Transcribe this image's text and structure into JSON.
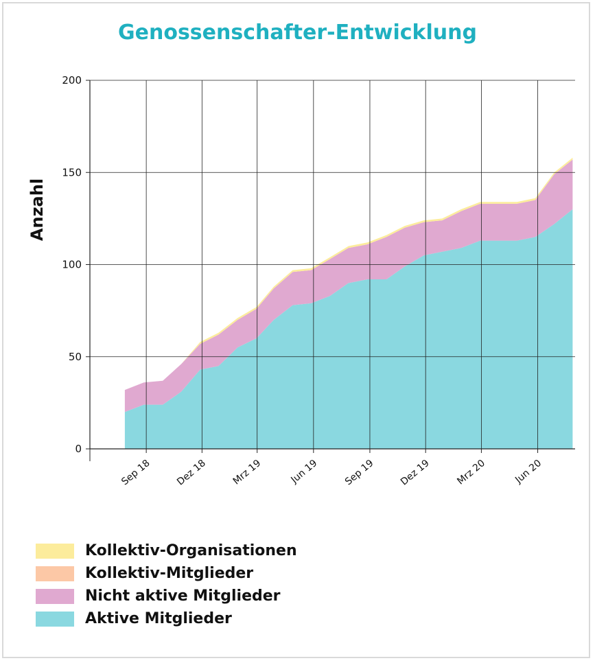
{
  "chart_data": {
    "type": "area",
    "stacked": true,
    "title": "Genossenschafter-Entwicklung",
    "ylabel": "Anzahl",
    "xlabel": "",
    "ylim": [
      0,
      200
    ],
    "yticks": [
      0,
      50,
      100,
      150,
      200
    ],
    "xticks": [
      "Sep 18",
      "Dez 18",
      "Mrz 19",
      "Jun 19",
      "Sep 19",
      "Dez 19",
      "Mrz 20",
      "Jun 20"
    ],
    "x": [
      "2018-07",
      "2018-08",
      "2018-09",
      "2018-10",
      "2018-11",
      "2018-12",
      "2019-01",
      "2019-02",
      "2019-03",
      "2019-04",
      "2019-05",
      "2019-06",
      "2019-07",
      "2019-08",
      "2019-09",
      "2019-10",
      "2019-11",
      "2019-12",
      "2020-01",
      "2020-02",
      "2020-03",
      "2020-04",
      "2020-05",
      "2020-06",
      "2020-07"
    ],
    "grid": true,
    "legend_position": "bottom-left",
    "series": [
      {
        "name": "Aktive Mitglieder",
        "color": "#8ad8e0",
        "values": [
          20,
          24,
          24,
          31,
          43,
          45,
          55,
          60,
          70,
          78,
          79,
          83,
          90,
          92,
          92,
          99,
          105,
          107,
          109,
          113,
          113,
          113,
          115,
          122,
          130
        ]
      },
      {
        "name": "Nicht aktive Mitglieder",
        "color": "#e0a9d0",
        "values": [
          12,
          12,
          13,
          15,
          14,
          17,
          15,
          16,
          17,
          18,
          18,
          20,
          19,
          19,
          23,
          21,
          18,
          17,
          20,
          20,
          20,
          20,
          20,
          27,
          27
        ]
      },
      {
        "name": "Kollektiv-Mitglieder",
        "color": "#fcc8a6",
        "values": [
          0,
          0,
          0,
          0,
          0,
          0,
          0,
          0,
          0,
          0,
          0,
          0,
          0,
          0,
          0,
          0,
          0,
          0,
          0,
          0,
          0,
          0,
          0,
          0,
          0
        ]
      },
      {
        "name": "Kollektiv-Organisationen",
        "color": "#fcec9c",
        "values": [
          0,
          0,
          0,
          0,
          1,
          1,
          1,
          1,
          1,
          1,
          1,
          1,
          1,
          1,
          1,
          1,
          1,
          1,
          1,
          1,
          1,
          1,
          1,
          1,
          1
        ]
      }
    ]
  },
  "legend_order": [
    "Kollektiv-Organisationen",
    "Kollektiv-Mitglieder",
    "Nicht aktive Mitglieder",
    "Aktive Mitglieder"
  ]
}
